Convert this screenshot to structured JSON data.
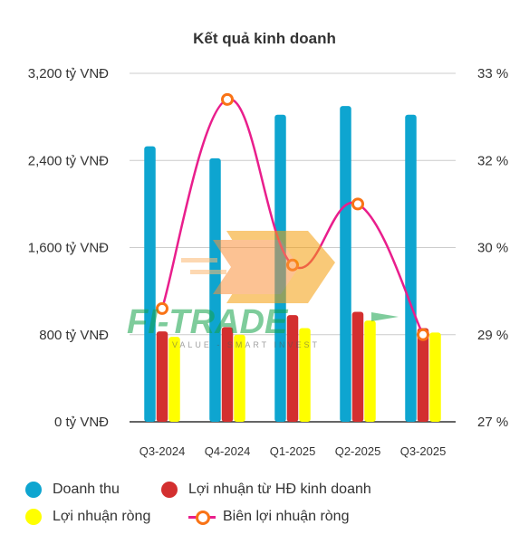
{
  "chart_data": {
    "type": "bar",
    "title": "Kết quả kinh doanh",
    "categories": [
      "Q3-2024",
      "Q4-2024",
      "Q1-2025",
      "Q2-2025",
      "Q3-2025"
    ],
    "series": [
      {
        "name": "Doanh thu",
        "type": "bar",
        "axis": "left",
        "color": "#0ea5d0",
        "values": [
          2530,
          2420,
          2820,
          2900,
          2820
        ]
      },
      {
        "name": "Lợi nhuận từ HĐ kinh doanh",
        "type": "bar",
        "axis": "left",
        "color": "#d32f2f",
        "values": [
          830,
          870,
          980,
          1010,
          860
        ]
      },
      {
        "name": "Lợi nhuận ròng",
        "type": "bar",
        "axis": "left",
        "color": "#ffff00",
        "values": [
          780,
          800,
          860,
          930,
          820
        ]
      },
      {
        "name": "Biên lợi nhuận ròng",
        "type": "line",
        "axis": "right",
        "color": "#e91e8c",
        "values": [
          29.3,
          32.7,
          29.8,
          31.0,
          29.0
        ]
      }
    ],
    "y_left": {
      "ticks": [
        0,
        800,
        1600,
        2400,
        3200
      ],
      "tick_labels": [
        "0 tỷ VNĐ",
        "800 tỷ VNĐ",
        "1,600 tỷ VNĐ",
        "2,400 tỷ VNĐ",
        "3,200 tỷ VNĐ"
      ],
      "ylim": [
        0,
        3200
      ]
    },
    "y_right": {
      "ticks": [
        27,
        29,
        30,
        32,
        33
      ],
      "tick_labels": [
        "27 %",
        "29 %",
        "30 %",
        "32 %",
        "33 %"
      ]
    },
    "grid": true,
    "legend_position": "bottom"
  },
  "legend": {
    "item1": "Doanh thu",
    "item2": "Lợi nhuận từ HĐ kinh doanh",
    "item3": "Lợi nhuận ròng",
    "item4": "Biên lợi nhuận ròng"
  },
  "watermark": {
    "text_main": "FI-TRADE",
    "text_sub": "VALUE - SMART INVEST"
  }
}
